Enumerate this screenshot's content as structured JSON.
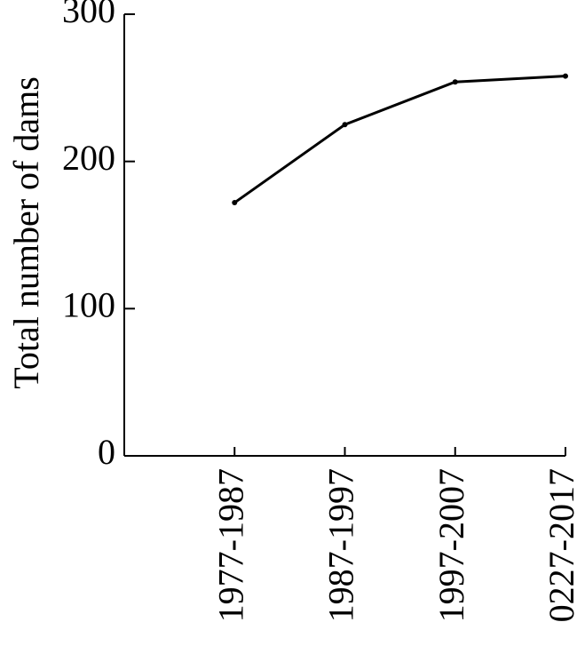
{
  "chart_data": {
    "type": "line",
    "y_label": "Total number of dams",
    "categories": [
      "1977-1987",
      "1987-1997",
      "1997-2007",
      "0227-2017"
    ],
    "values": [
      172,
      225,
      254,
      258
    ],
    "color": "#000000",
    "ylim": [
      0,
      300
    ],
    "yticks": [
      0,
      100,
      200,
      300
    ]
  }
}
